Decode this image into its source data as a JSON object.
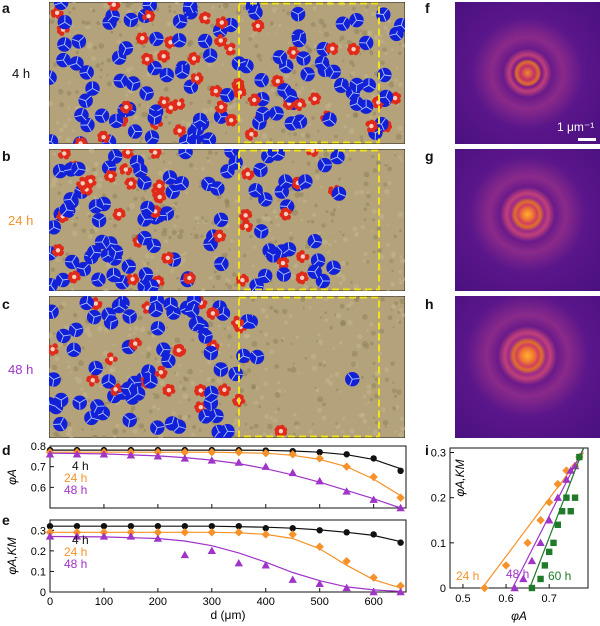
{
  "panel_labels": {
    "a": "a",
    "b": "b",
    "c": "c",
    "d": "d",
    "e": "e",
    "f": "f",
    "g": "g",
    "h": "h",
    "i": "i"
  },
  "time_labels": {
    "t4": "4 h",
    "t24": "24 h",
    "t48": "48 h"
  },
  "colors": {
    "black": "#111111",
    "orange": "#f5922a",
    "purple": "#a033c8",
    "green": "#1f7a2a",
    "blue": "#1220d8",
    "red": "#e02a1a",
    "sand": "#b3a27a",
    "dash": "#f2e21a"
  },
  "scale_bar_label": "1 μm⁻¹",
  "chart_data": [
    {
      "id": "d",
      "type": "line",
      "ylabel": "φA",
      "xlabel": "",
      "xlim": [
        0,
        660
      ],
      "ylim": [
        0.5,
        0.8
      ],
      "yticks": [
        0.6,
        0.7,
        0.8
      ],
      "xticks": [
        0,
        100,
        200,
        300,
        400,
        500,
        600
      ],
      "legend": [
        "4 h",
        "24 h",
        "48 h"
      ],
      "series": [
        {
          "name": "4 h",
          "color": "#111111",
          "marker": "circle",
          "x": [
            0,
            50,
            100,
            150,
            200,
            250,
            300,
            350,
            400,
            450,
            500,
            550,
            600,
            650
          ],
          "y": [
            0.78,
            0.78,
            0.78,
            0.78,
            0.78,
            0.78,
            0.78,
            0.78,
            0.778,
            0.775,
            0.77,
            0.76,
            0.74,
            0.68
          ],
          "fit_x": [
            0,
            100,
            200,
            300,
            400,
            450,
            500,
            550,
            600,
            650
          ],
          "fit_y": [
            0.78,
            0.78,
            0.78,
            0.78,
            0.779,
            0.776,
            0.77,
            0.758,
            0.735,
            0.69
          ]
        },
        {
          "name": "24 h",
          "color": "#f5922a",
          "marker": "diamond",
          "x": [
            0,
            50,
            100,
            150,
            200,
            250,
            300,
            350,
            400,
            450,
            500,
            550,
            600,
            650
          ],
          "y": [
            0.77,
            0.77,
            0.77,
            0.77,
            0.77,
            0.77,
            0.77,
            0.77,
            0.765,
            0.76,
            0.74,
            0.7,
            0.65,
            0.55
          ],
          "fit_x": [
            0,
            100,
            200,
            300,
            400,
            450,
            500,
            550,
            600,
            650
          ],
          "fit_y": [
            0.77,
            0.77,
            0.77,
            0.77,
            0.765,
            0.755,
            0.735,
            0.7,
            0.64,
            0.56
          ]
        },
        {
          "name": "48 h",
          "color": "#a033c8",
          "marker": "triangle",
          "x": [
            0,
            50,
            100,
            150,
            200,
            250,
            300,
            350,
            400,
            450,
            500,
            550,
            600,
            650
          ],
          "y": [
            0.76,
            0.76,
            0.76,
            0.755,
            0.75,
            0.74,
            0.73,
            0.72,
            0.7,
            0.67,
            0.63,
            0.58,
            0.54,
            0.5
          ],
          "fit_x": [
            0,
            100,
            200,
            250,
            300,
            350,
            400,
            450,
            500,
            550,
            600,
            650
          ],
          "fit_y": [
            0.765,
            0.762,
            0.752,
            0.744,
            0.732,
            0.715,
            0.69,
            0.66,
            0.625,
            0.585,
            0.545,
            0.5
          ]
        }
      ]
    },
    {
      "id": "e",
      "type": "line",
      "ylabel": "φA,KM",
      "xlabel": "d (μm)",
      "xlim": [
        0,
        660
      ],
      "ylim": [
        0,
        0.35
      ],
      "yticks": [
        0,
        0.1,
        0.2,
        0.3
      ],
      "xticks": [
        0,
        100,
        200,
        300,
        400,
        500,
        600
      ],
      "legend": [
        "4 h",
        "24 h",
        "48 h"
      ],
      "series": [
        {
          "name": "4 h",
          "color": "#111111",
          "marker": "circle",
          "x": [
            0,
            50,
            100,
            150,
            200,
            250,
            300,
            350,
            400,
            450,
            500,
            550,
            600,
            650
          ],
          "y": [
            0.32,
            0.32,
            0.32,
            0.32,
            0.32,
            0.32,
            0.32,
            0.32,
            0.31,
            0.31,
            0.3,
            0.29,
            0.28,
            0.24
          ],
          "fit_x": [
            0,
            100,
            200,
            300,
            400,
            450,
            500,
            550,
            600,
            650
          ],
          "fit_y": [
            0.32,
            0.32,
            0.32,
            0.32,
            0.315,
            0.31,
            0.302,
            0.29,
            0.275,
            0.245
          ]
        },
        {
          "name": "24 h",
          "color": "#f5922a",
          "marker": "diamond",
          "x": [
            0,
            50,
            100,
            150,
            200,
            250,
            300,
            350,
            400,
            450,
            500,
            550,
            600,
            650
          ],
          "y": [
            0.29,
            0.29,
            0.29,
            0.29,
            0.29,
            0.29,
            0.29,
            0.29,
            0.28,
            0.28,
            0.22,
            0.15,
            0.07,
            0.03
          ],
          "fit_x": [
            0,
            100,
            200,
            300,
            350,
            400,
            450,
            500,
            550,
            600,
            650
          ],
          "fit_y": [
            0.29,
            0.29,
            0.29,
            0.29,
            0.288,
            0.28,
            0.26,
            0.21,
            0.13,
            0.06,
            0.02
          ]
        },
        {
          "name": "48 h",
          "color": "#a033c8",
          "marker": "triangle",
          "x": [
            0,
            50,
            100,
            150,
            200,
            250,
            300,
            350,
            400,
            450,
            500,
            550,
            600,
            650
          ],
          "y": [
            0.27,
            0.27,
            0.27,
            0.27,
            0.26,
            0.18,
            0.2,
            0.14,
            0.13,
            0.06,
            0.04,
            0.02,
            0.0,
            0.0
          ],
          "fit_x": [
            0,
            100,
            200,
            250,
            300,
            350,
            400,
            450,
            500,
            550,
            600,
            650
          ],
          "fit_y": [
            0.27,
            0.268,
            0.26,
            0.248,
            0.225,
            0.19,
            0.145,
            0.095,
            0.055,
            0.025,
            0.01,
            0.003
          ]
        }
      ]
    },
    {
      "id": "i",
      "type": "scatter",
      "ylabel": "φA,KM",
      "xlabel": "φA",
      "xlim": [
        0.47,
        0.79
      ],
      "ylim": [
        0,
        0.31
      ],
      "xticks": [
        0.5,
        0.6,
        0.7
      ],
      "yticks": [
        0,
        0.1,
        0.2,
        0.3
      ],
      "series": [
        {
          "name": "24 h",
          "color": "#f5922a",
          "marker": "diamond",
          "x": [
            0.55,
            0.6,
            0.65,
            0.68,
            0.7,
            0.72,
            0.74,
            0.76,
            0.77
          ],
          "y": [
            0.0,
            0.05,
            0.1,
            0.15,
            0.19,
            0.23,
            0.26,
            0.27,
            0.29
          ],
          "fit_x": [
            0.545,
            0.78
          ],
          "fit_y": [
            0.0,
            0.3
          ]
        },
        {
          "name": "48 h",
          "color": "#a033c8",
          "marker": "triangle",
          "x": [
            0.62,
            0.64,
            0.66,
            0.68,
            0.7,
            0.72,
            0.74,
            0.75,
            0.76
          ],
          "y": [
            0.0,
            0.02,
            0.06,
            0.1,
            0.15,
            0.2,
            0.24,
            0.26,
            0.27
          ],
          "fit_x": [
            0.615,
            0.78
          ],
          "fit_y": [
            0.0,
            0.31
          ]
        },
        {
          "name": "60 h",
          "color": "#1f7a2a",
          "marker": "square",
          "x": [
            0.66,
            0.68,
            0.69,
            0.7,
            0.71,
            0.72,
            0.73,
            0.74,
            0.75,
            0.76,
            0.77
          ],
          "y": [
            0.0,
            0.02,
            0.05,
            0.08,
            0.1,
            0.14,
            0.17,
            0.2,
            0.17,
            0.2,
            0.29
          ],
          "fit_x": [
            0.655,
            0.78
          ],
          "fit_y": [
            0.0,
            0.31
          ]
        }
      ]
    }
  ]
}
